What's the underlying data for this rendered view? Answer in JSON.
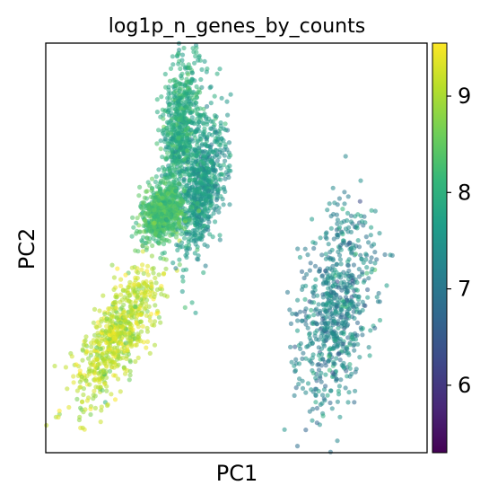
{
  "chart_data": {
    "type": "scatter",
    "title": "log1p_n_genes_by_counts",
    "xlabel": "PC1",
    "ylabel": "PC2",
    "xticks": [],
    "yticks": [],
    "grid": false,
    "legend": "none",
    "colorbar": {
      "label": "",
      "colormap": "viridis",
      "range": [
        5.3,
        9.55
      ],
      "ticks": [
        6,
        7,
        8,
        9
      ],
      "tick_labels": [
        "6",
        "7",
        "8",
        "9"
      ]
    },
    "clusters": [
      {
        "name": "left-bottom",
        "center": [
          -0.62,
          -0.42
        ],
        "spread": [
          0.07,
          0.2
        ],
        "angle_deg": 60,
        "value_mean": 9.1,
        "value_sd": 0.25
      },
      {
        "name": "right",
        "center": [
          0.52,
          -0.3
        ],
        "spread": [
          0.26,
          0.09
        ],
        "angle_deg": -8,
        "value_mean": 7.3,
        "value_sd": 0.35
      },
      {
        "name": "upper-top",
        "center": [
          -0.29,
          0.58
        ],
        "spread": [
          0.05,
          0.19
        ],
        "angle_deg": 84,
        "value_mean": 7.9,
        "value_sd": 0.25
      },
      {
        "name": "upper-middle",
        "center": [
          -0.18,
          0.3
        ],
        "spread": [
          0.05,
          0.17
        ],
        "angle_deg": 80,
        "value_mean": 7.6,
        "value_sd": 0.25
      },
      {
        "name": "upper-small",
        "center": [
          -0.39,
          0.17
        ],
        "spread": [
          0.05,
          0.07
        ],
        "angle_deg": 60,
        "value_mean": 8.3,
        "value_sd": 0.2
      }
    ],
    "xlim": [
      -1,
      1
    ],
    "ylim": [
      -1,
      1
    ]
  },
  "colors": {
    "viridis": [
      "#440154",
      "#482878",
      "#3e4989",
      "#31688e",
      "#26828e",
      "#1f9e89",
      "#35b779",
      "#6ece58",
      "#b5de2b",
      "#fde725"
    ]
  }
}
